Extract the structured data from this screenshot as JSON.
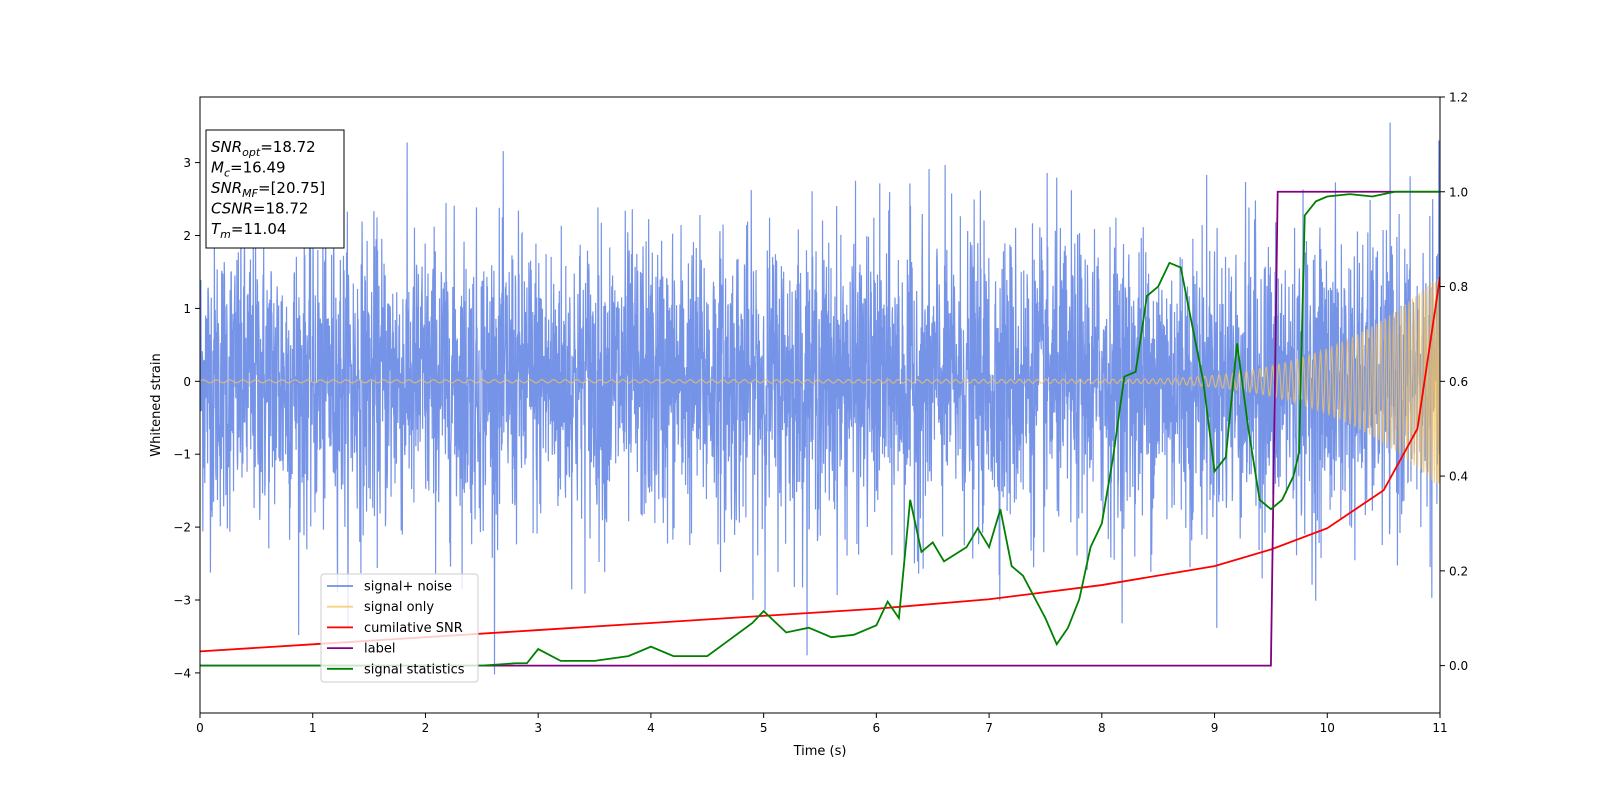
{
  "chart_data": {
    "type": "line",
    "title": "",
    "xlabel": "Time (s)",
    "ylabel": "Whitened strain",
    "xlim": [
      0,
      11
    ],
    "ylim_left": [
      -4.55,
      3.9
    ],
    "ylim_right": [
      -0.1,
      1.2
    ],
    "x_ticks": [
      0,
      1,
      2,
      3,
      4,
      5,
      6,
      7,
      8,
      9,
      10,
      11
    ],
    "y_ticks_left": [
      -4,
      -3,
      -2,
      -1,
      0,
      1,
      2,
      3
    ],
    "y_ticks_right": [
      0.0,
      0.2,
      0.4,
      0.6,
      0.8,
      1.0,
      1.2
    ],
    "grid": false,
    "legend_position": "lower-left",
    "info_box": {
      "snr_opt": {
        "base": "SNR",
        "sub": "opt",
        "value": "=18.72"
      },
      "mc": {
        "base": "M",
        "sub": "c",
        "value": "=16.49"
      },
      "snr_mf": {
        "base": "SNR",
        "sub": "MF",
        "value": "=[20.75]"
      },
      "csnr": {
        "base": "CSNR",
        "sub": "",
        "value": "=18.72"
      },
      "tm": {
        "base": "T",
        "sub": "m",
        "value": "=11.04"
      }
    },
    "series": [
      {
        "name": "signal+ noise",
        "axis": "left",
        "color": "#6f8ee6",
        "kind": "noise",
        "amplitude_sd": 1.0,
        "ymin": -4.15,
        "ymax": 3.55
      },
      {
        "name": "signal only",
        "axis": "left",
        "color": "#f5c35c",
        "kind": "chirp",
        "amplitude_start": 0.02,
        "amplitude_end": 1.4
      },
      {
        "name": "cumilative SNR",
        "axis": "right",
        "color": "#ff0000",
        "points": [
          [
            0,
            0.03
          ],
          [
            1,
            0.045
          ],
          [
            2,
            0.06
          ],
          [
            3,
            0.075
          ],
          [
            4,
            0.09
          ],
          [
            5,
            0.105
          ],
          [
            6,
            0.12
          ],
          [
            7,
            0.14
          ],
          [
            8,
            0.17
          ],
          [
            9,
            0.21
          ],
          [
            9.5,
            0.245
          ],
          [
            10,
            0.29
          ],
          [
            10.5,
            0.37
          ],
          [
            10.8,
            0.5
          ],
          [
            11,
            0.82
          ]
        ]
      },
      {
        "name": "label",
        "axis": "right",
        "color": "#800080",
        "points": [
          [
            0,
            0.0
          ],
          [
            9.5,
            0.0
          ],
          [
            9.56,
            1.0
          ],
          [
            11,
            1.0
          ]
        ]
      },
      {
        "name": "signal statistics",
        "axis": "right",
        "color": "#008000",
        "points": [
          [
            0,
            0.0
          ],
          [
            0.5,
            0.0
          ],
          [
            1,
            0.0
          ],
          [
            1.5,
            0.0
          ],
          [
            2,
            0.0
          ],
          [
            2.5,
            0.0
          ],
          [
            2.8,
            0.005
          ],
          [
            2.9,
            0.005
          ],
          [
            3,
            0.035
          ],
          [
            3.2,
            0.01
          ],
          [
            3.5,
            0.01
          ],
          [
            3.8,
            0.02
          ],
          [
            4,
            0.04
          ],
          [
            4.2,
            0.02
          ],
          [
            4.5,
            0.02
          ],
          [
            4.7,
            0.055
          ],
          [
            4.9,
            0.09
          ],
          [
            5,
            0.115
          ],
          [
            5.2,
            0.07
          ],
          [
            5.4,
            0.08
          ],
          [
            5.6,
            0.06
          ],
          [
            5.8,
            0.065
          ],
          [
            6,
            0.085
          ],
          [
            6.1,
            0.135
          ],
          [
            6.2,
            0.1
          ],
          [
            6.3,
            0.35
          ],
          [
            6.4,
            0.24
          ],
          [
            6.5,
            0.26
          ],
          [
            6.6,
            0.22
          ],
          [
            6.8,
            0.25
          ],
          [
            6.9,
            0.29
          ],
          [
            7,
            0.25
          ],
          [
            7.1,
            0.33
          ],
          [
            7.2,
            0.21
          ],
          [
            7.3,
            0.19
          ],
          [
            7.5,
            0.1
          ],
          [
            7.6,
            0.045
          ],
          [
            7.7,
            0.08
          ],
          [
            7.8,
            0.14
          ],
          [
            7.9,
            0.25
          ],
          [
            8,
            0.3
          ],
          [
            8.1,
            0.44
          ],
          [
            8.2,
            0.61
          ],
          [
            8.3,
            0.62
          ],
          [
            8.4,
            0.78
          ],
          [
            8.5,
            0.8
          ],
          [
            8.6,
            0.85
          ],
          [
            8.7,
            0.84
          ],
          [
            8.8,
            0.72
          ],
          [
            8.9,
            0.6
          ],
          [
            9,
            0.41
          ],
          [
            9.1,
            0.44
          ],
          [
            9.2,
            0.68
          ],
          [
            9.3,
            0.5
          ],
          [
            9.4,
            0.35
          ],
          [
            9.5,
            0.33
          ],
          [
            9.6,
            0.35
          ],
          [
            9.7,
            0.4
          ],
          [
            9.75,
            0.45
          ],
          [
            9.8,
            0.95
          ],
          [
            9.9,
            0.98
          ],
          [
            10,
            0.99
          ],
          [
            10.2,
            0.995
          ],
          [
            10.4,
            0.99
          ],
          [
            10.6,
            1.0
          ],
          [
            11,
            1.0
          ]
        ]
      }
    ]
  }
}
